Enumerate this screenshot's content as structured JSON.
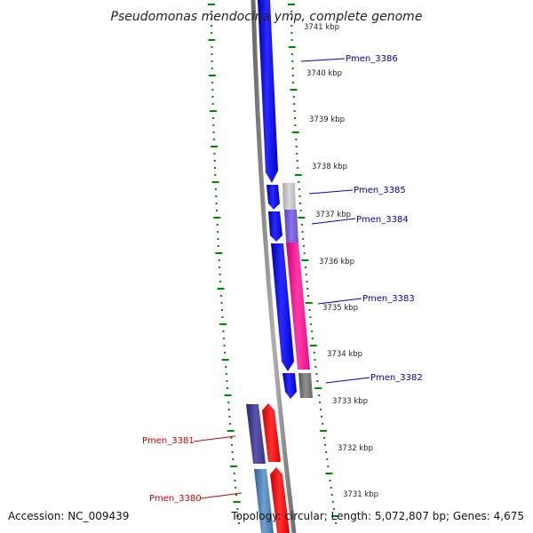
{
  "title": "Pseudomonas mendocina ymp, complete genome",
  "footer": {
    "accession": "Accession: NC_009439",
    "summary": "Topology: circular; Length: 5,072,807 bp; Genes: 4,675"
  },
  "kbp_labels": [
    "3741 kbp",
    "3740 kbp",
    "3739 kbp",
    "3738 kbp",
    "3737 kbp",
    "3736 kbp",
    "3735 kbp",
    "3734 kbp",
    "3733 kbp",
    "3732 kbp",
    "3731 kbp"
  ],
  "gene_labels": [
    "Pmen_3386",
    "Pmen_3385",
    "Pmen_3384",
    "Pmen_3383",
    "Pmen_3382",
    "Pmen_3381",
    "Pmen_3380"
  ],
  "colors": {
    "backbone": "#808080",
    "forward_strand": "#0000ee",
    "reverse_strand": "#ff0000",
    "dots": "#008800",
    "forward_label": "#0000aa",
    "reverse_label": "#cc0000"
  }
}
